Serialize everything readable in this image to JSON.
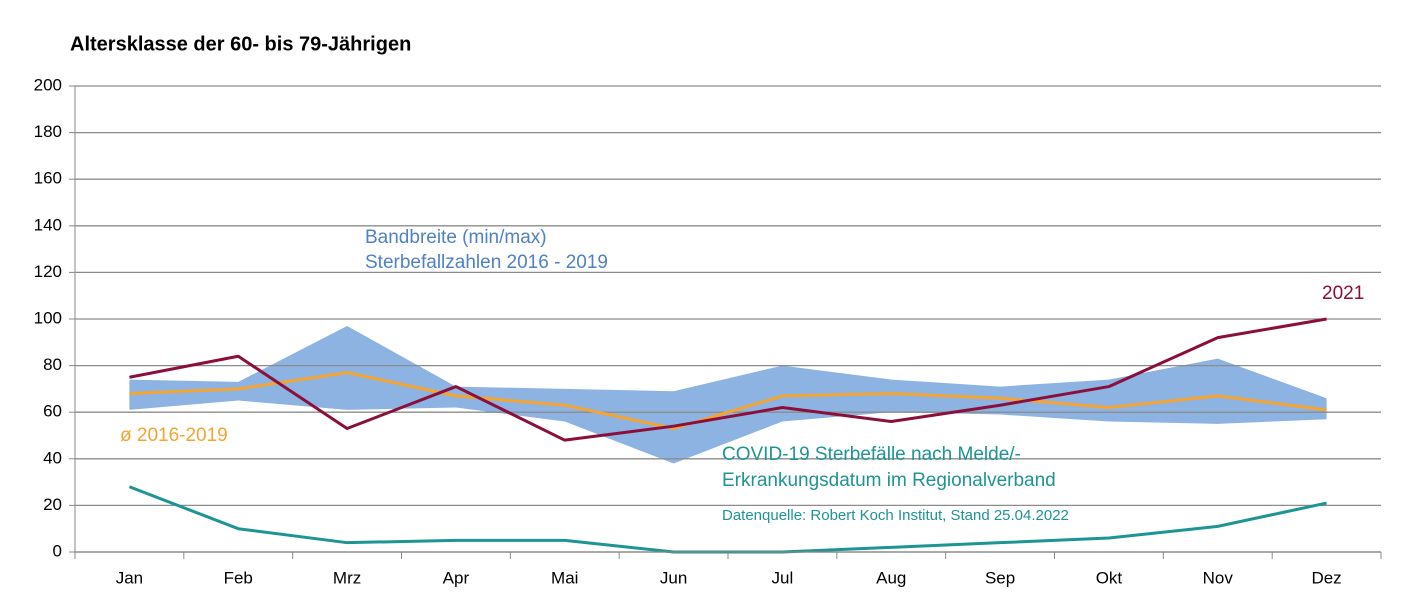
{
  "chart_data": {
    "type": "line",
    "title": "Altersklasse der  60- bis 79-Jährigen",
    "categories": [
      "Jan",
      "Feb",
      "Mrz",
      "Apr",
      "Mai",
      "Jun",
      "Jul",
      "Aug",
      "Sep",
      "Okt",
      "Nov",
      "Dez"
    ],
    "ylim": [
      0,
      200
    ],
    "yticks": [
      0,
      20,
      40,
      60,
      80,
      100,
      120,
      140,
      160,
      180,
      200
    ],
    "grid": true,
    "band": {
      "color": "#8db3e2",
      "max": [
        74,
        73,
        97,
        71,
        70,
        69,
        80,
        74,
        71,
        74,
        83,
        66
      ],
      "min": [
        61,
        65,
        61,
        62,
        56,
        38,
        56,
        60,
        59,
        56,
        55,
        57
      ]
    },
    "series": [
      {
        "name": "ø 2016-2019",
        "color": "#f5a431",
        "values": [
          68,
          70,
          77,
          67,
          63,
          53,
          67,
          68,
          66,
          62,
          67,
          61
        ]
      },
      {
        "name": "2021",
        "color": "#8b0f3c",
        "values": [
          75,
          84,
          53,
          71,
          48,
          54,
          62,
          56,
          63,
          71,
          92,
          100
        ]
      },
      {
        "color": "#1e9494",
        "values": [
          28,
          10,
          4,
          5,
          5,
          0,
          0,
          2,
          4,
          6,
          11,
          21
        ]
      }
    ],
    "annotations": [
      "Bandbreite (min/max)",
      "Sterbefallzahlen 2016 - 2019",
      "COVID-19 Sterbefälle nach Melde/-",
      "Erkrankungsdatum im Regionalverband",
      "Datenquelle: Robert Koch Institut, Stand 25.04.2022"
    ]
  }
}
